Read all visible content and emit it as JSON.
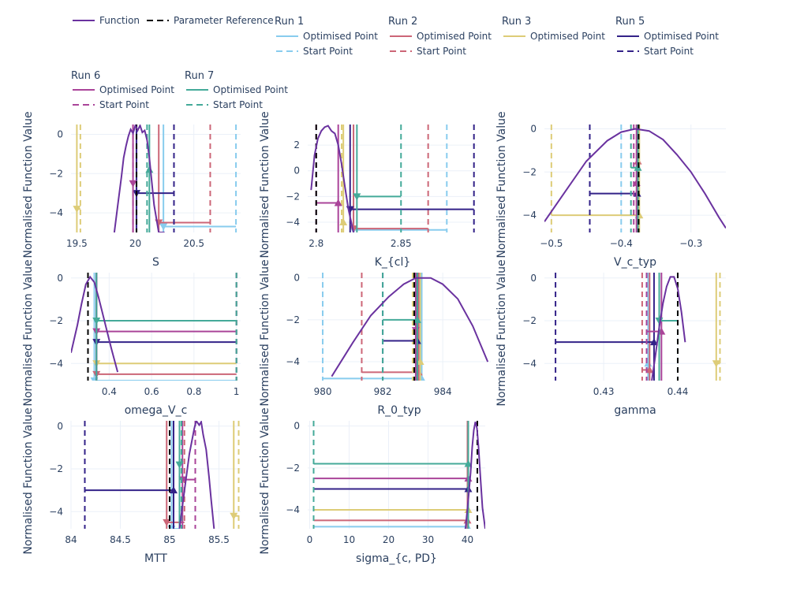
{
  "colors": {
    "function": "#6a329f",
    "reference": "#000000",
    "run1": "#88ccee",
    "run2": "#cc6677",
    "run3": "#ddcc77",
    "run5": "#332288",
    "run6": "#aa4499",
    "run7": "#44aa99"
  },
  "legend": {
    "function": "Function",
    "reference": "Parameter Reference",
    "optimised": "Optimised Point",
    "start": "Start Point",
    "groups": [
      {
        "title": "Run 1",
        "run": "run1"
      },
      {
        "title": "Run 2",
        "run": "run2"
      },
      {
        "title": "Run 3",
        "run": "run3"
      },
      {
        "title": "Run 5",
        "run": "run5"
      },
      {
        "title": "Run 6",
        "run": "run6"
      },
      {
        "title": "Run 7",
        "run": "run7"
      }
    ]
  },
  "chart_data": [
    {
      "type": "line",
      "xlabel": "S",
      "ylabel": "Normalised Function Value",
      "xlim": [
        19.45,
        20.9
      ],
      "ylim": [
        -5,
        0.5
      ],
      "xticks": [
        {
          "v": 19.5,
          "l": "19.5"
        },
        {
          "v": 20,
          "l": "20"
        },
        {
          "v": 20.5,
          "l": "20.5"
        }
      ],
      "yticks": [
        {
          "v": 0,
          "l": "0"
        },
        {
          "v": -2,
          "l": "−2"
        },
        {
          "v": -4,
          "l": "−4"
        }
      ],
      "function": {
        "x": [
          19.82,
          19.85,
          19.88,
          19.9,
          19.92,
          19.94,
          19.96,
          19.98,
          20.0,
          20.02,
          20.04,
          20.06,
          20.08,
          20.1,
          20.12,
          20.14,
          20.16,
          20.2,
          20.25
        ],
        "y": [
          -5,
          -3.6,
          -2.2,
          -1.2,
          -0.6,
          -0.1,
          0.25,
          0.05,
          0.45,
          0.2,
          0.45,
          0.1,
          0.2,
          -0.3,
          -1.2,
          -2.4,
          -3.6,
          -5,
          -5
        ]
      },
      "reference": 20.01,
      "runs": [
        {
          "run": "run1",
          "start": 20.86,
          "opt": 20.24,
          "y": -4.7
        },
        {
          "run": "run2",
          "start": 20.64,
          "opt": 20.2,
          "y": -4.5
        },
        {
          "run": "run3",
          "start": 19.53,
          "opt": 19.5,
          "y": -3.8
        },
        {
          "run": "run5",
          "start": 20.33,
          "opt": 20.01,
          "y": -3.0
        },
        {
          "run": "run6",
          "start": 19.98,
          "opt": 19.98,
          "y": -2.5
        },
        {
          "run": "run7",
          "start": 20.1,
          "opt": 20.12,
          "y": -1.8
        }
      ]
    },
    {
      "type": "line",
      "xlabel": "K_{cl}",
      "ylabel": "Normalised Function Value",
      "xlim": [
        2.795,
        2.895
      ],
      "ylim": [
        -4.8,
        3.6
      ],
      "xticks": [
        {
          "v": 2.8,
          "l": "2.8"
        },
        {
          "v": 2.85,
          "l": "2.85"
        }
      ],
      "yticks": [
        {
          "v": 2,
          "l": "2"
        },
        {
          "v": 0,
          "l": "0"
        },
        {
          "v": -2,
          "l": "−2"
        },
        {
          "v": -4,
          "l": "−4"
        }
      ],
      "function": {
        "x": [
          2.797,
          2.799,
          2.801,
          2.803,
          2.805,
          2.807,
          2.809,
          2.811,
          2.813,
          2.815,
          2.817,
          2.819,
          2.822
        ],
        "y": [
          -1.5,
          1.2,
          2.5,
          3.1,
          3.4,
          3.5,
          3.1,
          2.9,
          2.0,
          0.5,
          -1.3,
          -3.0,
          -4.8
        ]
      },
      "reference": 2.8,
      "runs": [
        {
          "run": "run1",
          "start": 2.877,
          "opt": 2.822,
          "y": -4.6
        },
        {
          "run": "run2",
          "start": 2.866,
          "opt": 2.822,
          "y": -4.5
        },
        {
          "run": "run3",
          "start": 2.815,
          "opt": 2.816,
          "y": -4.0
        },
        {
          "run": "run5",
          "start": 2.893,
          "opt": 2.82,
          "y": -3.0
        },
        {
          "run": "run6",
          "start": 2.8,
          "opt": 2.813,
          "y": -2.5
        },
        {
          "run": "run7",
          "start": 2.85,
          "opt": 2.824,
          "y": -2.0
        }
      ]
    },
    {
      "type": "line",
      "xlabel": "V_c_typ",
      "ylabel": "Normalised Function Value",
      "xlim": [
        -0.51,
        -0.25
      ],
      "ylim": [
        -4.8,
        0.2
      ],
      "xticks": [
        {
          "v": -0.5,
          "l": "−0.5"
        },
        {
          "v": -0.4,
          "l": "−0.4"
        },
        {
          "v": -0.3,
          "l": "−0.3"
        }
      ],
      "yticks": [
        {
          "v": 0,
          "l": "0"
        },
        {
          "v": -2,
          "l": "−2"
        },
        {
          "v": -4,
          "l": "−4"
        }
      ],
      "function": {
        "x": [
          -0.51,
          -0.48,
          -0.45,
          -0.42,
          -0.4,
          -0.38,
          -0.36,
          -0.34,
          -0.32,
          -0.3,
          -0.28,
          -0.26,
          -0.25
        ],
        "y": [
          -4.3,
          -2.9,
          -1.5,
          -0.55,
          -0.15,
          0.0,
          -0.1,
          -0.5,
          -1.2,
          -2.0,
          -3.0,
          -4.1,
          -4.6
        ]
      },
      "reference": -0.375,
      "runs": [
        {
          "run": "run1",
          "start": -0.4,
          "opt": -0.375,
          "y": -4.0
        },
        {
          "run": "run2",
          "start": -0.378,
          "opt": -0.376,
          "y": -1.5
        },
        {
          "run": "run3",
          "start": -0.5,
          "opt": -0.374,
          "y": -4.0
        },
        {
          "run": "run5",
          "start": -0.445,
          "opt": -0.377,
          "y": -3.0
        },
        {
          "run": "run6",
          "start": -0.382,
          "opt": -0.378,
          "y": -2.5
        },
        {
          "run": "run7",
          "start": -0.386,
          "opt": -0.376,
          "y": -1.8
        }
      ]
    },
    {
      "type": "line",
      "xlabel": "omega_V_c",
      "ylabel": "Normalised Function Value",
      "xlim": [
        0.22,
        1.02
      ],
      "ylim": [
        -4.8,
        0.25
      ],
      "xticks": [
        {
          "v": 0.4,
          "l": "0.4"
        },
        {
          "v": 0.6,
          "l": "0.6"
        },
        {
          "v": 0.8,
          "l": "0.8"
        },
        {
          "v": 1,
          "l": "1"
        }
      ],
      "yticks": [
        {
          "v": 0,
          "l": "0"
        },
        {
          "v": -2,
          "l": "−2"
        },
        {
          "v": -4,
          "l": "−4"
        }
      ],
      "function": {
        "x": [
          0.22,
          0.25,
          0.27,
          0.29,
          0.31,
          0.33,
          0.35,
          0.38,
          0.41,
          0.44
        ],
        "y": [
          -3.5,
          -2.2,
          -1.2,
          -0.3,
          0.05,
          -0.2,
          -0.9,
          -2.1,
          -3.3,
          -4.4
        ]
      },
      "reference": 0.3,
      "runs": [
        {
          "run": "run1",
          "start": 1.0,
          "opt": 0.33,
          "y": -4.8
        },
        {
          "run": "run2",
          "start": 1.0,
          "opt": 0.34,
          "y": -4.5
        },
        {
          "run": "run3",
          "start": 1.0,
          "opt": 0.34,
          "y": -4.0
        },
        {
          "run": "run5",
          "start": 1.0,
          "opt": 0.34,
          "y": -3.0
        },
        {
          "run": "run6",
          "start": 1.0,
          "opt": 0.34,
          "y": -2.5
        },
        {
          "run": "run7",
          "start": 1.0,
          "opt": 0.34,
          "y": -2.0
        }
      ]
    },
    {
      "type": "line",
      "xlabel": "R_0_typ",
      "ylabel": "Normalised Function Value",
      "xlim": [
        979.5,
        985.6
      ],
      "ylim": [
        -4.9,
        0.25
      ],
      "xticks": [
        {
          "v": 980,
          "l": "980"
        },
        {
          "v": 982,
          "l": "982"
        },
        {
          "v": 984,
          "l": "984"
        }
      ],
      "yticks": [
        {
          "v": 0,
          "l": "0"
        },
        {
          "v": -2,
          "l": "−2"
        },
        {
          "v": -4,
          "l": "−4"
        }
      ],
      "function": {
        "x": [
          980.3,
          981.0,
          981.6,
          982.2,
          982.7,
          983.1,
          983.6,
          984.0,
          984.5,
          985.0,
          985.5
        ],
        "y": [
          -4.7,
          -3.1,
          -1.8,
          -0.9,
          -0.3,
          0.0,
          0.0,
          -0.3,
          -1.0,
          -2.3,
          -4.0
        ]
      },
      "reference": 983.05,
      "runs": [
        {
          "run": "run1",
          "start": 980.0,
          "opt": 983.3,
          "y": -4.8
        },
        {
          "run": "run2",
          "start": 981.3,
          "opt": 983.2,
          "y": -4.5
        },
        {
          "run": "run3",
          "start": 983.0,
          "opt": 983.25,
          "y": -4.0
        },
        {
          "run": "run5",
          "start": 982.0,
          "opt": 983.15,
          "y": -3.0
        },
        {
          "run": "run6",
          "start": 983.1,
          "opt": 983.1,
          "y": -2.5
        },
        {
          "run": "run7",
          "start": 982.0,
          "opt": 983.15,
          "y": -2.0
        }
      ]
    },
    {
      "type": "line",
      "xlabel": "gamma",
      "ylabel": "Normalised Function Value",
      "xlim": [
        0.422,
        0.4465
      ],
      "ylim": [
        -4.8,
        0.25
      ],
      "xticks": [
        {
          "v": 0.43,
          "l": "0.43"
        },
        {
          "v": 0.44,
          "l": "0.44"
        }
      ],
      "yticks": [
        {
          "v": 0,
          "l": "0"
        },
        {
          "v": -2,
          "l": "−2"
        },
        {
          "v": -4,
          "l": "−4"
        }
      ],
      "function": {
        "x": [
          0.4365,
          0.437,
          0.4375,
          0.438,
          0.4385,
          0.439,
          0.4395,
          0.44,
          0.4405,
          0.441
        ],
        "y": [
          -4.8,
          -3.6,
          -2.3,
          -1.2,
          -0.4,
          0.05,
          0.05,
          -0.5,
          -1.6,
          -3.0
        ]
      },
      "reference": 0.44,
      "runs": [
        {
          "run": "run1",
          "start": 0.4358,
          "opt": 0.436,
          "y": -4.0
        },
        {
          "run": "run2",
          "start": 0.4352,
          "opt": 0.4362,
          "y": -4.3
        },
        {
          "run": "run3",
          "start": 0.4457,
          "opt": 0.4452,
          "y": -4.0
        },
        {
          "run": "run5",
          "start": 0.4235,
          "opt": 0.4368,
          "y": -3.0
        },
        {
          "run": "run6",
          "start": 0.4358,
          "opt": 0.4378,
          "y": -2.5
        },
        {
          "run": "run7",
          "start": 0.44,
          "opt": 0.4375,
          "y": -2.0
        }
      ]
    },
    {
      "type": "line",
      "xlabel": "MTT",
      "ylabel": "Normalised Function Value",
      "xlim": [
        84.0,
        85.72
      ],
      "ylim": [
        -4.8,
        0.25
      ],
      "xticks": [
        {
          "v": 84,
          "l": "84"
        },
        {
          "v": 84.5,
          "l": "84.5"
        },
        {
          "v": 85,
          "l": "85"
        },
        {
          "v": 85.5,
          "l": "85.5"
        }
      ],
      "yticks": [
        {
          "v": 0,
          "l": "0"
        },
        {
          "v": -2,
          "l": "−2"
        },
        {
          "v": -4,
          "l": "−4"
        }
      ],
      "function": {
        "x": [
          85.1,
          85.15,
          85.2,
          85.25,
          85.27,
          85.3,
          85.32,
          85.34,
          85.37,
          85.4,
          85.42,
          85.45
        ],
        "y": [
          -4.8,
          -3.0,
          -1.3,
          -0.1,
          0.25,
          0.05,
          0.2,
          -0.4,
          -1.1,
          -2.4,
          -3.4,
          -4.8
        ]
      },
      "reference": 85.0,
      "runs": [
        {
          "run": "run1",
          "start": 85.1,
          "opt": 85.02,
          "y": -4.8
        },
        {
          "run": "run2",
          "start": 85.15,
          "opt": 84.97,
          "y": -4.5
        },
        {
          "run": "run3",
          "start": 85.7,
          "opt": 85.65,
          "y": -4.2
        },
        {
          "run": "run5",
          "start": 84.14,
          "opt": 85.04,
          "y": -3.0
        },
        {
          "run": "run6",
          "start": 85.26,
          "opt": 85.13,
          "y": -2.5
        },
        {
          "run": "run7",
          "start": 85.12,
          "opt": 85.1,
          "y": -1.8
        }
      ]
    },
    {
      "type": "line",
      "xlabel": "sigma_{c, PD}",
      "ylabel": "Normalised Function Value",
      "xlim": [
        -0.5,
        44.5
      ],
      "ylim": [
        -4.9,
        0.25
      ],
      "xticks": [
        {
          "v": 0,
          "l": "0"
        },
        {
          "v": 10,
          "l": "10"
        },
        {
          "v": 20,
          "l": "20"
        },
        {
          "v": 30,
          "l": "30"
        },
        {
          "v": 40,
          "l": "40"
        }
      ],
      "yticks": [
        {
          "v": 0,
          "l": "0"
        },
        {
          "v": -2,
          "l": "−2"
        },
        {
          "v": -4,
          "l": "−4"
        }
      ],
      "function": {
        "x": [
          39.5,
          40.2,
          40.8,
          41.2,
          41.6,
          42.0,
          42.4,
          42.8,
          43.3,
          43.8,
          44.5
        ],
        "y": [
          -4.9,
          -3.5,
          -2.2,
          -1.0,
          -0.2,
          0.2,
          -0.1,
          -1.0,
          -2.5,
          -3.9,
          -4.9
        ]
      },
      "reference": 42.5,
      "runs": [
        {
          "run": "run1",
          "start": 1.0,
          "opt": 40.0,
          "y": -4.8
        },
        {
          "run": "run2",
          "start": 1.0,
          "opt": 40.0,
          "y": -4.5
        },
        {
          "run": "run3",
          "start": 1.0,
          "opt": 40.2,
          "y": -4.0
        },
        {
          "run": "run5",
          "start": 1.0,
          "opt": 40.2,
          "y": -3.0
        },
        {
          "run": "run6",
          "start": 1.0,
          "opt": 40.2,
          "y": -2.5
        },
        {
          "run": "run7",
          "start": 1.0,
          "opt": 40.2,
          "y": -1.8
        }
      ]
    }
  ]
}
